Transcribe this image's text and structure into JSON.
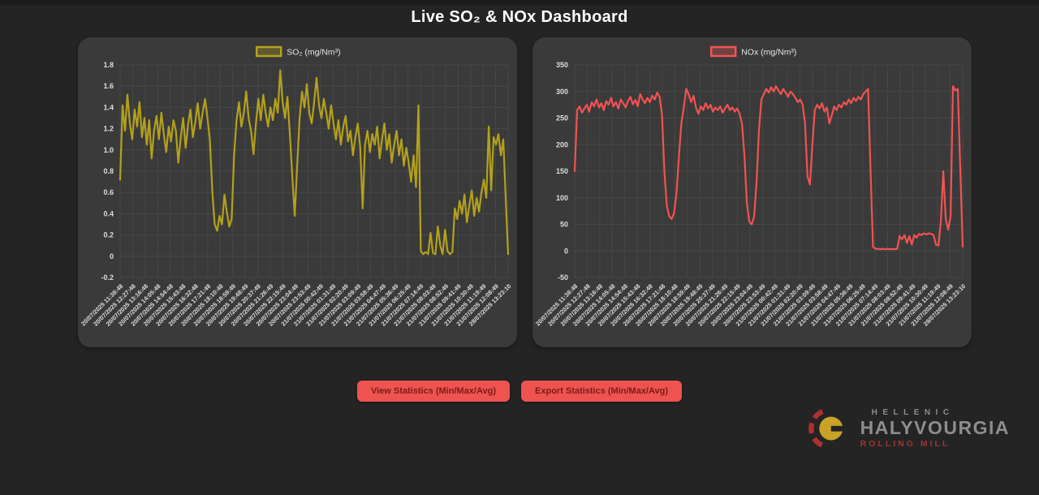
{
  "page": {
    "title": "Live SO₂ & NOx Dashboard"
  },
  "colors": {
    "page_background": "#242424",
    "panel_background": "#3a3a3a",
    "grid": "#474747",
    "tick_text": "#dddddd",
    "so2_series": "#b4a11c",
    "nox_series": "#f25252",
    "button_background": "#ef5350",
    "button_text": "#7b1b1b",
    "logo_yellow": "#c9a227",
    "logo_red": "#b03030"
  },
  "buttons": {
    "view": "View Statistics (Min/Max/Avg)",
    "export": "Export Statistics (Min/Max/Avg)"
  },
  "logo": {
    "line1": "HELLENIC",
    "line2": "HALYVOURGIA",
    "line3": "ROLLING MILL"
  },
  "chart_data": [
    {
      "type": "line",
      "legend_label": "SO₂ (mg/Nm³)",
      "color": "#b4a11c",
      "ylim": [
        -0.2,
        1.8
      ],
      "grid": true,
      "legend_position": "top",
      "ytick_values": [
        1.8,
        1.6,
        1.4,
        1.2,
        1.0,
        0.8,
        0.6,
        0.4,
        0.2,
        0,
        -0.2
      ],
      "ytick_labels": [
        "1.8",
        "1.6",
        "1.4",
        "1.2",
        "1.0",
        "0.8",
        "0.6",
        "0.4",
        "0.2",
        "0",
        "-0.2"
      ],
      "x_labels": [
        "20/07/2025 11:38:48",
        "20/07/2025 12:27:48",
        "20/07/2025 13:16:48",
        "20/07/2025 14:05:48",
        "20/07/2025 14:54:48",
        "20/07/2025 15:43:48",
        "20/07/2025 16:32:48",
        "20/07/2025 17:21:48",
        "20/07/2025 18:10:48",
        "20/07/2025 18:59:49",
        "20/07/2025 19:48:49",
        "20/07/2025 20:37:49",
        "20/07/2025 21:26:49",
        "20/07/2025 22:15:49",
        "20/07/2025 23:04:49",
        "20/07/2025 23:53:49",
        "21/07/2025 00:42:49",
        "21/07/2025 01:31:49",
        "21/07/2025 02:20:49",
        "21/07/2025 03:09:49",
        "21/07/2025 03:58:49",
        "21/07/2025 04:47:49",
        "21/07/2025 05:36:49",
        "21/07/2025 06:25:49",
        "21/07/2025 07:14:49",
        "21/07/2025 08:03:49",
        "21/07/2025 08:52:49",
        "21/07/2025 09:41:49",
        "21/07/2025 10:30:49",
        "21/07/2025 11:19:49",
        "21/07/2025 12:08:49",
        "28/07/2025 13:23:10"
      ],
      "values": [
        0.72,
        1.42,
        1.18,
        1.52,
        1.25,
        1.1,
        1.38,
        1.22,
        1.45,
        1.12,
        1.3,
        1.05,
        1.28,
        0.92,
        1.18,
        1.32,
        1.1,
        1.35,
        1.15,
        0.98,
        1.22,
        1.08,
        1.28,
        1.18,
        0.88,
        1.12,
        1.3,
        1.02,
        1.24,
        1.38,
        1.12,
        1.26,
        1.44,
        1.2,
        1.35,
        1.48,
        1.3,
        1.1,
        0.62,
        0.3,
        0.24,
        0.38,
        0.3,
        0.58,
        0.42,
        0.28,
        0.35,
        0.95,
        1.28,
        1.45,
        1.22,
        1.35,
        1.55,
        1.3,
        1.18,
        0.96,
        1.25,
        1.48,
        1.28,
        1.52,
        1.35,
        1.22,
        1.4,
        1.28,
        1.48,
        1.35,
        1.75,
        1.45,
        1.3,
        1.5,
        1.15,
        0.75,
        0.38,
        0.85,
        1.3,
        1.55,
        1.4,
        1.62,
        1.35,
        1.25,
        1.45,
        1.68,
        1.42,
        1.3,
        1.48,
        1.35,
        1.2,
        1.42,
        1.25,
        1.1,
        1.28,
        1.05,
        1.22,
        1.32,
        1.08,
        1.18,
        0.95,
        1.12,
        1.25,
        1.02,
        0.45,
        1.05,
        1.18,
        0.98,
        1.15,
        1.05,
        1.22,
        0.92,
        1.1,
        1.25,
        1.0,
        1.15,
        0.88,
        1.05,
        1.18,
        0.95,
        1.1,
        0.85,
        1.02,
        0.88,
        0.7,
        0.95,
        0.65,
        1.42,
        0.05,
        0.02,
        0.04,
        0.02,
        0.22,
        0.03,
        0.02,
        0.28,
        0.1,
        0.02,
        0.25,
        0.05,
        0.02,
        0.04,
        0.45,
        0.35,
        0.52,
        0.4,
        0.58,
        0.32,
        0.48,
        0.62,
        0.38,
        0.55,
        0.42,
        0.6,
        0.72,
        0.55,
        1.22,
        0.62,
        1.12,
        1.05,
        1.15,
        0.95,
        1.1,
        0.55,
        0.02
      ]
    },
    {
      "type": "line",
      "legend_label": "NOx (mg/Nm³)",
      "color": "#f25252",
      "ylim": [
        -50,
        350
      ],
      "grid": true,
      "legend_position": "top",
      "ytick_values": [
        350,
        300,
        250,
        200,
        150,
        100,
        50,
        0,
        -50
      ],
      "ytick_labels": [
        "350",
        "300",
        "250",
        "200",
        "150",
        "100",
        "50",
        "0",
        "-50"
      ],
      "x_labels": [
        "20/07/2025 11:38:48",
        "20/07/2025 12:27:48",
        "20/07/2025 13:16:48",
        "20/07/2025 14:05:48",
        "20/07/2025 14:54:48",
        "20/07/2025 15:43:48",
        "20/07/2025 16:32:48",
        "20/07/2025 17:21:48",
        "20/07/2025 18:10:48",
        "20/07/2025 18:59:49",
        "20/07/2025 19:48:49",
        "20/07/2025 20:37:49",
        "20/07/2025 21:26:49",
        "20/07/2025 22:15:49",
        "20/07/2025 23:04:49",
        "20/07/2025 23:53:49",
        "21/07/2025 00:42:49",
        "21/07/2025 01:31:49",
        "21/07/2025 02:20:49",
        "21/07/2025 03:09:49",
        "21/07/2025 03:58:49",
        "21/07/2025 04:47:49",
        "21/07/2025 05:36:49",
        "21/07/2025 06:25:49",
        "21/07/2025 07:14:49",
        "21/07/2025 08:03:49",
        "21/07/2025 08:52:49",
        "21/07/2025 09:41:49",
        "21/07/2025 10:30:49",
        "21/07/2025 11:19:49",
        "21/07/2025 12:08:49",
        "28/07/2025 13:23:10"
      ],
      "values": [
        150,
        265,
        272,
        260,
        268,
        275,
        262,
        280,
        272,
        285,
        270,
        278,
        265,
        282,
        275,
        288,
        272,
        280,
        268,
        285,
        278,
        270,
        282,
        290,
        276,
        284,
        272,
        295,
        285,
        278,
        288,
        280,
        292,
        285,
        298,
        290,
        255,
        150,
        85,
        65,
        60,
        72,
        110,
        180,
        240,
        270,
        305,
        295,
        280,
        292,
        270,
        258,
        272,
        265,
        278,
        268,
        275,
        262,
        270,
        265,
        272,
        260,
        268,
        275,
        265,
        270,
        262,
        268,
        258,
        240,
        180,
        90,
        55,
        50,
        65,
        130,
        230,
        285,
        295,
        305,
        298,
        308,
        300,
        310,
        302,
        295,
        305,
        298,
        290,
        300,
        295,
        288,
        280,
        285,
        275,
        240,
        140,
        125,
        200,
        265,
        275,
        268,
        278,
        262,
        270,
        240,
        255,
        272,
        265,
        275,
        270,
        280,
        275,
        285,
        278,
        288,
        282,
        290,
        285,
        295,
        300,
        305,
        150,
        8,
        4,
        4,
        3,
        4,
        3,
        4,
        3,
        4,
        3,
        4,
        28,
        22,
        30,
        15,
        28,
        12,
        30,
        25,
        32,
        30,
        33,
        31,
        33,
        32,
        30,
        12,
        10,
        55,
        150,
        60,
        40,
        65,
        310,
        302,
        305,
        155,
        8
      ]
    }
  ]
}
